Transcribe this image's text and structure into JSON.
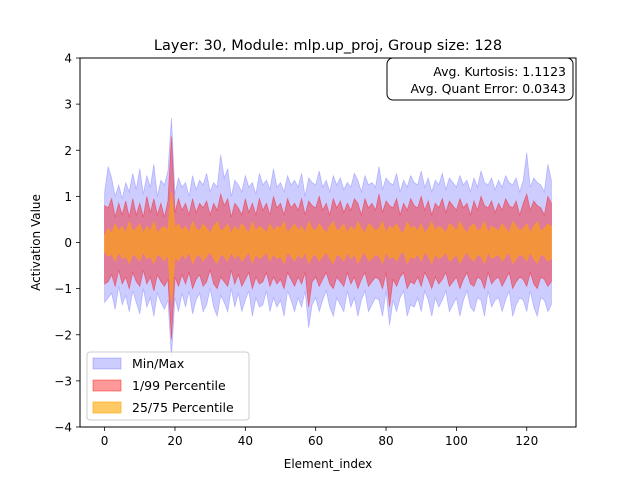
{
  "chart_data": {
    "type": "area",
    "title": "Layer: 30, Module: mlp.up_proj,  Group size: 128",
    "xlabel": "Element_index",
    "ylabel": "Activation Value",
    "xlim": [
      -7,
      134
    ],
    "ylim": [
      -4,
      4
    ],
    "xticks": [
      0,
      20,
      40,
      60,
      80,
      100,
      120
    ],
    "yticks": [
      -4,
      -3,
      -2,
      -1,
      0,
      1,
      2,
      3,
      4
    ],
    "grid": false,
    "legend_position": "lower-left",
    "annotation": {
      "lines": [
        "Avg. Kurtosis: 1.1123",
        "Avg. Quant Error: 0.0343"
      ],
      "position": "top-right"
    },
    "bands": [
      {
        "name": "Min/Max",
        "color": "#0000ff",
        "alpha": 0.2,
        "upper_key": "max",
        "lower_key": "min"
      },
      {
        "name": "1/99 Percentile",
        "color": "#ff0000",
        "alpha": 0.4,
        "upper_key": "p99",
        "lower_key": "p1"
      },
      {
        "name": "25/75 Percentile",
        "color": "#ffa500",
        "alpha": 0.6,
        "upper_key": "p75",
        "lower_key": "p25"
      }
    ],
    "x": [
      0,
      1,
      2,
      3,
      4,
      5,
      6,
      7,
      8,
      9,
      10,
      11,
      12,
      13,
      14,
      15,
      16,
      17,
      18,
      19,
      20,
      21,
      22,
      23,
      24,
      25,
      26,
      27,
      28,
      29,
      30,
      31,
      32,
      33,
      34,
      35,
      36,
      37,
      38,
      39,
      40,
      41,
      42,
      43,
      44,
      45,
      46,
      47,
      48,
      49,
      50,
      51,
      52,
      53,
      54,
      55,
      56,
      57,
      58,
      59,
      60,
      61,
      62,
      63,
      64,
      65,
      66,
      67,
      68,
      69,
      70,
      71,
      72,
      73,
      74,
      75,
      76,
      77,
      78,
      79,
      80,
      81,
      82,
      83,
      84,
      85,
      86,
      87,
      88,
      89,
      90,
      91,
      92,
      93,
      94,
      95,
      96,
      97,
      98,
      99,
      100,
      101,
      102,
      103,
      104,
      105,
      106,
      107,
      108,
      109,
      110,
      111,
      112,
      113,
      114,
      115,
      116,
      117,
      118,
      119,
      120,
      121,
      122,
      123,
      124,
      125,
      126,
      127
    ],
    "max": [
      1.1,
      1.65,
      1.4,
      1.0,
      1.25,
      0.95,
      1.3,
      1.1,
      1.5,
      1.15,
      1.6,
      1.05,
      1.45,
      1.2,
      1.7,
      1.0,
      1.35,
      1.25,
      1.55,
      2.7,
      1.05,
      1.4,
      1.2,
      1.3,
      1.0,
      1.45,
      1.15,
      1.35,
      1.25,
      1.5,
      1.1,
      1.3,
      1.2,
      1.9,
      1.4,
      1.6,
      1.0,
      1.35,
      1.25,
      1.1,
      1.45,
      1.2,
      1.3,
      1.05,
      1.5,
      1.25,
      1.35,
      1.15,
      1.6,
      1.2,
      1.3,
      1.1,
      1.45,
      1.25,
      1.35,
      1.2,
      1.5,
      1.0,
      1.4,
      1.3,
      1.25,
      1.55,
      1.2,
      1.35,
      1.1,
      1.45,
      1.25,
      1.4,
      1.15,
      1.3,
      1.2,
      1.5,
      1.35,
      1.1,
      1.45,
      1.25,
      1.3,
      1.2,
      1.65,
      1.15,
      1.4,
      1.3,
      1.25,
      1.5,
      1.1,
      1.35,
      1.2,
      1.45,
      1.3,
      1.25,
      1.55,
      1.2,
      1.4,
      1.1,
      1.35,
      1.25,
      1.5,
      1.15,
      1.4,
      1.3,
      1.2,
      1.45,
      1.25,
      1.35,
      1.1,
      1.4,
      1.2,
      1.55,
      1.3,
      1.25,
      1.4,
      1.15,
      1.35,
      1.2,
      1.45,
      1.3,
      1.25,
      1.4,
      1.1,
      1.35,
      1.95,
      1.2,
      1.4,
      1.3,
      1.25,
      1.1,
      1.7,
      1.35
    ],
    "p99": [
      0.8,
      0.75,
      0.95,
      0.55,
      0.85,
      0.6,
      0.9,
      0.55,
      0.95,
      0.6,
      0.85,
      0.55,
      1.0,
      0.65,
      0.95,
      0.6,
      0.85,
      0.55,
      0.9,
      2.3,
      0.65,
      0.95,
      0.7,
      0.85,
      0.6,
      0.95,
      0.65,
      0.85,
      0.75,
      0.9,
      0.6,
      0.85,
      0.7,
      1.05,
      0.8,
      0.95,
      0.55,
      0.85,
      0.75,
      0.6,
      0.95,
      0.65,
      0.85,
      0.6,
      0.95,
      0.7,
      0.85,
      0.6,
      1.0,
      0.75,
      0.85,
      0.6,
      0.95,
      0.75,
      0.85,
      0.7,
      0.95,
      0.6,
      0.9,
      0.8,
      0.75,
      1.0,
      0.7,
      0.85,
      0.6,
      0.95,
      0.75,
      0.9,
      0.65,
      0.85,
      0.7,
      0.95,
      0.85,
      0.6,
      0.95,
      0.75,
      0.85,
      0.7,
      1.05,
      0.65,
      0.9,
      0.8,
      0.75,
      0.95,
      0.6,
      0.85,
      0.7,
      0.95,
      0.8,
      0.75,
      1.0,
      0.7,
      0.9,
      0.6,
      0.85,
      0.75,
      0.95,
      0.65,
      0.9,
      0.8,
      0.7,
      0.95,
      0.75,
      0.85,
      0.6,
      0.9,
      0.7,
      1.0,
      0.8,
      0.75,
      0.9,
      0.65,
      0.85,
      0.7,
      0.95,
      0.8,
      0.75,
      0.9,
      0.6,
      0.85,
      1.05,
      0.7,
      0.9,
      0.8,
      0.75,
      0.6,
      1.0,
      0.85
    ],
    "p75": [
      0.15,
      0.3,
      0.2,
      0.4,
      0.25,
      0.35,
      0.2,
      0.45,
      0.25,
      0.3,
      0.4,
      0.2,
      0.35,
      0.25,
      0.45,
      0.2,
      0.3,
      0.35,
      0.25,
      1.1,
      0.3,
      0.4,
      0.25,
      0.35,
      0.2,
      0.45,
      0.3,
      0.25,
      0.4,
      0.3,
      0.2,
      0.35,
      0.45,
      0.25,
      0.3,
      0.4,
      0.2,
      0.35,
      0.25,
      0.4,
      0.3,
      0.2,
      0.45,
      0.25,
      0.35,
      0.3,
      0.2,
      0.4,
      0.25,
      0.35,
      0.3,
      0.45,
      0.2,
      0.3,
      0.4,
      0.25,
      0.35,
      0.2,
      0.45,
      0.3,
      0.25,
      0.4,
      0.3,
      0.2,
      0.35,
      0.45,
      0.25,
      0.3,
      0.4,
      0.2,
      0.35,
      0.25,
      0.45,
      0.3,
      0.2,
      0.4,
      0.35,
      0.25,
      0.3,
      0.45,
      0.2,
      0.35,
      0.3,
      0.4,
      0.25,
      0.2,
      0.45,
      0.3,
      0.35,
      0.25,
      0.4,
      0.2,
      0.3,
      0.45,
      0.25,
      0.35,
      0.3,
      0.2,
      0.4,
      0.35,
      0.25,
      0.45,
      0.3,
      0.2,
      0.35,
      0.4,
      0.25,
      0.3,
      0.45,
      0.2,
      0.35,
      0.3,
      0.25,
      0.4,
      0.3,
      0.2,
      0.45,
      0.35,
      0.25,
      0.3,
      0.4,
      0.2,
      0.35,
      0.45,
      0.25,
      0.3,
      0.4,
      0.35
    ],
    "p25": [
      -0.2,
      -0.3,
      -0.25,
      -0.4,
      -0.2,
      -0.35,
      -0.3,
      -0.45,
      -0.25,
      -0.3,
      -0.4,
      -0.2,
      -0.35,
      -0.3,
      -0.45,
      -0.25,
      -0.3,
      -0.4,
      -0.25,
      -1.3,
      -0.3,
      -0.4,
      -0.25,
      -0.35,
      -0.2,
      -0.45,
      -0.3,
      -0.25,
      -0.4,
      -0.3,
      -0.2,
      -0.35,
      -0.45,
      -0.25,
      -0.3,
      -0.4,
      -0.2,
      -0.35,
      -0.25,
      -0.4,
      -0.3,
      -0.2,
      -0.45,
      -0.25,
      -0.35,
      -0.3,
      -0.2,
      -0.4,
      -0.25,
      -0.35,
      -0.3,
      -0.45,
      -0.2,
      -0.3,
      -0.4,
      -0.25,
      -0.35,
      -0.2,
      -0.45,
      -0.3,
      -0.25,
      -0.4,
      -0.3,
      -0.2,
      -0.35,
      -0.45,
      -0.25,
      -0.3,
      -0.4,
      -0.2,
      -0.35,
      -0.25,
      -0.45,
      -0.3,
      -0.2,
      -0.4,
      -0.35,
      -0.25,
      -0.3,
      -0.45,
      -0.2,
      -0.35,
      -0.3,
      -0.4,
      -0.25,
      -0.2,
      -0.45,
      -0.3,
      -0.35,
      -0.25,
      -0.4,
      -0.2,
      -0.3,
      -0.45,
      -0.25,
      -0.35,
      -0.3,
      -0.2,
      -0.4,
      -0.35,
      -0.25,
      -0.45,
      -0.3,
      -0.2,
      -0.35,
      -0.4,
      -0.25,
      -0.3,
      -0.45,
      -0.2,
      -0.35,
      -0.3,
      -0.25,
      -0.4,
      -0.3,
      -0.2,
      -0.45,
      -0.35,
      -0.25,
      -0.3,
      -0.4,
      -0.2,
      -0.35,
      -0.45,
      -0.25,
      -0.3,
      -0.4,
      -0.35
    ],
    "p1": [
      -0.9,
      -0.85,
      -0.7,
      -0.95,
      -0.6,
      -0.9,
      -0.75,
      -1.0,
      -0.65,
      -0.85,
      -0.95,
      -0.6,
      -0.9,
      -0.75,
      -1.05,
      -0.7,
      -0.85,
      -0.95,
      -0.8,
      -2.1,
      -0.75,
      -0.95,
      -0.7,
      -0.9,
      -0.65,
      -1.0,
      -0.8,
      -0.7,
      -0.95,
      -0.85,
      -0.6,
      -0.9,
      -1.0,
      -0.75,
      -0.85,
      -0.95,
      -0.6,
      -0.9,
      -0.7,
      -0.95,
      -0.8,
      -0.65,
      -1.0,
      -0.75,
      -0.9,
      -0.85,
      -0.65,
      -0.95,
      -0.75,
      -0.9,
      -0.8,
      -1.0,
      -0.65,
      -0.8,
      -0.95,
      -0.75,
      -0.9,
      -0.65,
      -1.4,
      -0.85,
      -0.75,
      -0.95,
      -0.8,
      -0.65,
      -0.9,
      -1.0,
      -0.75,
      -0.85,
      -0.95,
      -0.65,
      -0.9,
      -0.75,
      -1.0,
      -0.8,
      -0.65,
      -0.95,
      -0.85,
      -0.75,
      -0.8,
      -1.0,
      -0.65,
      -1.4,
      -0.8,
      -0.95,
      -0.75,
      -0.65,
      -1.0,
      -0.85,
      -0.9,
      -0.75,
      -0.95,
      -0.65,
      -0.8,
      -1.0,
      -0.75,
      -0.9,
      -0.8,
      -0.65,
      -0.95,
      -0.85,
      -0.75,
      -1.0,
      -0.8,
      -0.65,
      -0.9,
      -0.95,
      -0.75,
      -0.8,
      -1.0,
      -0.65,
      -0.9,
      -0.8,
      -0.75,
      -0.95,
      -0.8,
      -0.65,
      -1.0,
      -0.85,
      -0.75,
      -0.8,
      -0.95,
      -0.65,
      -0.9,
      -1.0,
      -0.75,
      -0.8,
      -0.95,
      -0.85
    ],
    "min": [
      -1.3,
      -1.2,
      -1.1,
      -1.45,
      -0.95,
      -1.35,
      -1.15,
      -1.5,
      -1.05,
      -1.3,
      -1.55,
      -1.0,
      -1.4,
      -1.2,
      -1.6,
      -1.1,
      -1.3,
      -1.45,
      -1.25,
      -2.5,
      -1.2,
      -1.5,
      -1.1,
      -1.4,
      -1.05,
      -1.55,
      -1.25,
      -1.1,
      -1.5,
      -1.35,
      -1.0,
      -1.4,
      -1.6,
      -1.15,
      -1.3,
      -1.5,
      -1.0,
      -1.4,
      -1.1,
      -1.5,
      -1.25,
      -1.05,
      -1.6,
      -1.2,
      -1.4,
      -1.35,
      -1.05,
      -1.5,
      -1.2,
      -1.4,
      -1.25,
      -1.6,
      -1.05,
      -1.25,
      -1.5,
      -1.2,
      -1.4,
      -1.05,
      -1.85,
      -1.35,
      -1.2,
      -1.5,
      -1.25,
      -1.05,
      -1.4,
      -1.6,
      -1.2,
      -1.35,
      -1.5,
      -1.05,
      -1.4,
      -1.2,
      -1.6,
      -1.25,
      -1.05,
      -1.5,
      -1.35,
      -1.2,
      -1.25,
      -1.6,
      -1.05,
      -1.8,
      -1.25,
      -1.5,
      -1.2,
      -1.05,
      -1.6,
      -1.35,
      -1.4,
      -1.2,
      -1.5,
      -1.05,
      -1.25,
      -1.6,
      -1.2,
      -1.4,
      -1.25,
      -1.05,
      -1.5,
      -1.35,
      -1.2,
      -1.6,
      -1.25,
      -1.05,
      -1.4,
      -1.5,
      -1.2,
      -1.25,
      -1.6,
      -1.05,
      -1.4,
      -1.25,
      -1.2,
      -1.5,
      -1.25,
      -1.05,
      -1.6,
      -1.35,
      -1.2,
      -1.25,
      -1.5,
      -1.05,
      -1.4,
      -1.6,
      -1.2,
      -1.25,
      -1.5,
      -1.35
    ]
  }
}
